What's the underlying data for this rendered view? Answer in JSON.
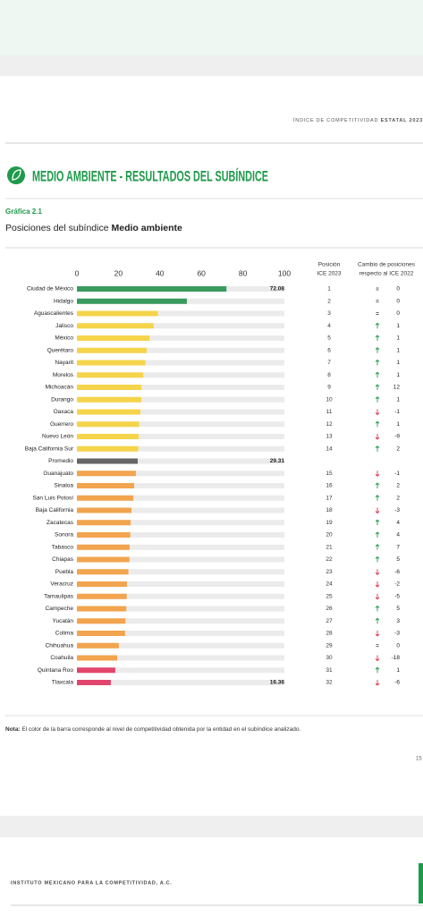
{
  "header": {
    "running_title": "ÍNDICE DE COMPETITIVIDAD",
    "running_title_bold": "ESTATAL 2023",
    "title": "MEDIO AMBIENTE - RESULTADOS DEL SUBÍNDICE",
    "figure_label": "Gráfica 2.1",
    "subtitle": "Posiciones del subíndice ",
    "subtitle_bold": "Medio ambiente"
  },
  "chart_data": {
    "type": "bar",
    "orientation": "horizontal",
    "categories": [
      "Ciudad de México",
      "Hidalgo",
      "Aguascalientes",
      "Jalisco",
      "México",
      "Querétaro",
      "Nayarit",
      "Morelos",
      "Michoacán",
      "Durango",
      "Oaxaca",
      "Guerrero",
      "Nuevo León",
      "Baja California Sur",
      "Promedio",
      "Guanajuato",
      "Sinaloa",
      "San Luis Potosí",
      "Baja California",
      "Zacatecas",
      "Sonora",
      "Tabasco",
      "Chiapas",
      "Puebla",
      "Veracruz",
      "Tamaulipas",
      "Campeche",
      "Yucatán",
      "Colima",
      "Chihuahua",
      "Coahuila",
      "Quintana Roo",
      "Tlaxcala"
    ],
    "values": [
      72.08,
      53,
      39,
      37,
      35,
      33.6,
      33,
      32,
      31,
      31,
      30.6,
      30,
      29.8,
      29.6,
      29.31,
      28.4,
      27.6,
      27.2,
      26.3,
      25.9,
      25.7,
      25.4,
      25.3,
      24.8,
      24.1,
      24,
      23.8,
      23.4,
      23.2,
      20.2,
      19.4,
      18.5,
      16.36
    ],
    "value_labels": [
      "72.08",
      null,
      null,
      null,
      null,
      null,
      null,
      null,
      null,
      null,
      null,
      null,
      null,
      null,
      "29.31",
      null,
      null,
      null,
      null,
      null,
      null,
      null,
      null,
      null,
      null,
      null,
      null,
      null,
      null,
      null,
      null,
      null,
      "16.36"
    ],
    "colors": [
      "#3a9a5e",
      "#3a9a5e",
      "#f5d44b",
      "#f5d44b",
      "#f5d44b",
      "#f5d44b",
      "#f5d44b",
      "#f5d44b",
      "#f5d44b",
      "#f5d44b",
      "#f5d44b",
      "#f5d44b",
      "#f5d44b",
      "#f5d44b",
      "#666666",
      "#f2a44e",
      "#f2a44e",
      "#f2a44e",
      "#f2a44e",
      "#f2a44e",
      "#f2a44e",
      "#f2a44e",
      "#f2a44e",
      "#f2a44e",
      "#f2a44e",
      "#f2a44e",
      "#f2a44e",
      "#f2a44e",
      "#f2a44e",
      "#f2a44e",
      "#f2a44e",
      "#e0466d",
      "#e0466d"
    ],
    "xlim": [
      0,
      100
    ],
    "xticks": [
      0,
      20,
      40,
      60,
      80,
      100
    ],
    "position_header": [
      "Posición",
      "ICE 2023"
    ],
    "change_header": [
      "Cambio de posiciones",
      "respecto al ICE 2022"
    ],
    "positions": [
      1,
      2,
      3,
      4,
      5,
      6,
      7,
      8,
      9,
      10,
      11,
      12,
      13,
      14,
      null,
      15,
      16,
      17,
      18,
      19,
      20,
      21,
      22,
      23,
      24,
      25,
      26,
      27,
      28,
      29,
      30,
      31,
      32
    ],
    "changes": [
      0,
      0,
      0,
      1,
      1,
      1,
      1,
      1,
      12,
      1,
      -1,
      1,
      -9,
      2,
      null,
      -1,
      2,
      2,
      -3,
      4,
      4,
      7,
      5,
      -6,
      -2,
      -5,
      5,
      3,
      -3,
      0,
      -18,
      1,
      -6
    ]
  },
  "note": {
    "label": "Nota:",
    "text": " El color de la barra corresponde al nivel de competitividad obtenida por la entidad en el subíndice analizado."
  },
  "page_number": "15",
  "footer": {
    "text": "INSTITUTO MEXICANO PARA LA COMPETITIVIDAD, A.C."
  }
}
